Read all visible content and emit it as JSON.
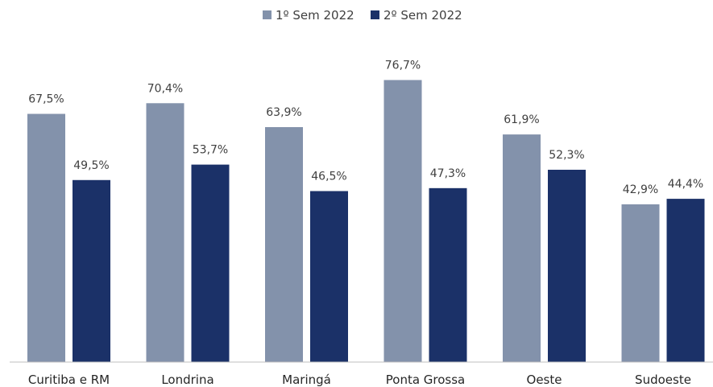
{
  "chart_data": {
    "type": "bar",
    "categories": [
      "Curitiba e RM",
      "Londrina",
      "Maringá",
      "Ponta Grossa",
      "Oeste",
      "Sudoeste"
    ],
    "series": [
      {
        "name": "1º Sem 2022",
        "color": "#8392ab",
        "values": [
          67.5,
          70.4,
          63.9,
          76.7,
          61.9,
          42.9
        ],
        "labels": [
          "67,5%",
          "70,4%",
          "63,9%",
          "76,7%",
          "61,9%",
          "42,9%"
        ]
      },
      {
        "name": "2º Sem 2022",
        "color": "#1b3168",
        "values": [
          49.5,
          53.7,
          46.5,
          47.3,
          52.3,
          44.4
        ],
        "labels": [
          "49,5%",
          "53,7%",
          "46,5%",
          "47,3%",
          "52,3%",
          "44,4%"
        ]
      }
    ],
    "ylim": [
      0,
      100
    ],
    "grid": false,
    "legend_position": "top-center",
    "axis_color": "#bfbfbf"
  }
}
